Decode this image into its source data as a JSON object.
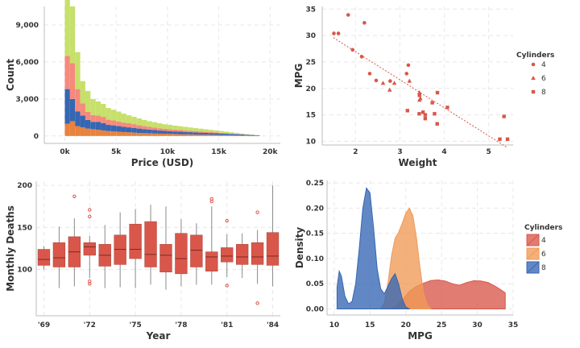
{
  "chart_data": [
    {
      "type": "histogram-stacked",
      "xlabel": "Price (USD)",
      "ylabel": "Count",
      "xlim": [
        -2000,
        21000
      ],
      "ylim": [
        -600,
        10500
      ],
      "x_ticks": [
        {
          "v": 0,
          "label": "0k"
        },
        {
          "v": 5000,
          "label": "5k"
        },
        {
          "v": 10000,
          "label": "10k"
        },
        {
          "v": 15000,
          "label": "15k"
        },
        {
          "v": 20000,
          "label": "20k"
        }
      ],
      "y_ticks": [
        {
          "v": 0,
          "label": "0"
        },
        {
          "v": 3000,
          "label": "3,000"
        },
        {
          "v": 6000,
          "label": "6,000"
        },
        {
          "v": 9000,
          "label": "9,000"
        }
      ],
      "bin_edges": [
        0,
        500,
        1000,
        1500,
        2000,
        2500,
        3000,
        3500,
        4000,
        4500,
        5000,
        5500,
        6000,
        6500,
        7000,
        7500,
        8000,
        8500,
        9000,
        9500,
        10000,
        10500,
        11000,
        11500,
        12000,
        12500,
        13000,
        13500,
        14000,
        14500,
        15000,
        15500,
        16000,
        16500,
        17000,
        17500,
        18000,
        18500,
        19000
      ],
      "series": [
        {
          "name": "orange",
          "color": "#e8823c",
          "values": [
            1000,
            1200,
            800,
            700,
            600,
            550,
            500,
            450,
            400,
            380,
            350,
            320,
            300,
            280,
            250,
            230,
            220,
            200,
            190,
            180,
            170,
            160,
            150,
            140,
            130,
            120,
            110,
            100,
            95,
            90,
            80,
            70,
            60,
            50,
            40,
            30,
            20,
            10
          ]
        },
        {
          "name": "blue",
          "color": "#3566b3",
          "values": [
            2800,
            1800,
            1200,
            950,
            700,
            600,
            650,
            600,
            500,
            480,
            450,
            420,
            400,
            380,
            350,
            320,
            300,
            280,
            250,
            230,
            220,
            210,
            200,
            190,
            180,
            170,
            160,
            150,
            140,
            130,
            120,
            110,
            100,
            90,
            80,
            70,
            60,
            50
          ]
        },
        {
          "name": "pink",
          "color": "#f58a7c",
          "values": [
            2700,
            2900,
            1800,
            1000,
            650,
            550,
            500,
            500,
            420,
            400,
            380,
            350,
            330,
            300,
            280,
            250,
            230,
            210,
            190,
            170,
            160,
            150,
            140,
            130,
            120,
            110,
            100,
            90,
            80,
            70,
            60,
            50,
            40,
            30,
            20,
            10,
            5,
            0
          ]
        },
        {
          "name": "green",
          "color": "#c7e06b",
          "values": [
            4800,
            4600,
            3000,
            1800,
            1700,
            1300,
            1150,
            1050,
            950,
            870,
            800,
            720,
            650,
            600,
            550,
            500,
            450,
            430,
            400,
            370,
            350,
            320,
            300,
            280,
            260,
            240,
            220,
            200,
            180,
            160,
            140,
            120,
            100,
            80,
            60,
            40,
            20,
            0
          ]
        }
      ]
    },
    {
      "type": "scatter",
      "xlabel": "Weight",
      "ylabel": "MPG",
      "xlim": [
        1.25,
        5.55
      ],
      "ylim": [
        9.3,
        35.5
      ],
      "x_ticks": [
        {
          "v": 2,
          "label": "2"
        },
        {
          "v": 3,
          "label": "3"
        },
        {
          "v": 4,
          "label": "4"
        },
        {
          "v": 5,
          "label": "5"
        }
      ],
      "y_ticks": [
        {
          "v": 10,
          "label": "10"
        },
        {
          "v": 15,
          "label": "15"
        },
        {
          "v": 20,
          "label": "20"
        },
        {
          "v": 25,
          "label": "25"
        },
        {
          "v": 30,
          "label": "30"
        },
        {
          "v": 35,
          "label": "35"
        }
      ],
      "color": "#d9574a",
      "legend_title": "Cylinders",
      "legend": [
        {
          "label": "4",
          "marker": "circle"
        },
        {
          "label": "6",
          "marker": "triangle"
        },
        {
          "label": "8",
          "marker": "square"
        }
      ],
      "trend": {
        "x": [
          1.5,
          5.42
        ],
        "y": [
          29.6,
          8.8
        ]
      },
      "points": [
        {
          "x": 2.62,
          "y": 21.0,
          "cyl": 6
        },
        {
          "x": 2.875,
          "y": 21.0,
          "cyl": 6
        },
        {
          "x": 2.32,
          "y": 22.8,
          "cyl": 4
        },
        {
          "x": 3.215,
          "y": 21.4,
          "cyl": 6
        },
        {
          "x": 3.44,
          "y": 18.7,
          "cyl": 8
        },
        {
          "x": 3.46,
          "y": 18.1,
          "cyl": 6
        },
        {
          "x": 3.57,
          "y": 14.3,
          "cyl": 8
        },
        {
          "x": 3.19,
          "y": 24.4,
          "cyl": 4
        },
        {
          "x": 3.15,
          "y": 22.8,
          "cyl": 4
        },
        {
          "x": 3.44,
          "y": 19.2,
          "cyl": 6
        },
        {
          "x": 3.44,
          "y": 17.8,
          "cyl": 6
        },
        {
          "x": 4.07,
          "y": 16.4,
          "cyl": 8
        },
        {
          "x": 3.73,
          "y": 17.3,
          "cyl": 8
        },
        {
          "x": 3.78,
          "y": 15.2,
          "cyl": 8
        },
        {
          "x": 5.25,
          "y": 10.4,
          "cyl": 8
        },
        {
          "x": 5.424,
          "y": 10.4,
          "cyl": 8
        },
        {
          "x": 5.345,
          "y": 14.7,
          "cyl": 8
        },
        {
          "x": 2.2,
          "y": 32.4,
          "cyl": 4
        },
        {
          "x": 1.615,
          "y": 30.4,
          "cyl": 4
        },
        {
          "x": 1.835,
          "y": 33.9,
          "cyl": 4
        },
        {
          "x": 2.465,
          "y": 21.5,
          "cyl": 4
        },
        {
          "x": 3.52,
          "y": 15.5,
          "cyl": 8
        },
        {
          "x": 3.435,
          "y": 15.2,
          "cyl": 8
        },
        {
          "x": 3.84,
          "y": 13.3,
          "cyl": 8
        },
        {
          "x": 3.845,
          "y": 19.2,
          "cyl": 8
        },
        {
          "x": 1.935,
          "y": 27.3,
          "cyl": 4
        },
        {
          "x": 2.14,
          "y": 26.0,
          "cyl": 4
        },
        {
          "x": 1.513,
          "y": 30.4,
          "cyl": 4
        },
        {
          "x": 3.17,
          "y": 15.8,
          "cyl": 8
        },
        {
          "x": 2.77,
          "y": 19.7,
          "cyl": 6
        },
        {
          "x": 3.57,
          "y": 15.0,
          "cyl": 8
        },
        {
          "x": 2.78,
          "y": 21.4,
          "cyl": 4
        }
      ]
    },
    {
      "type": "box",
      "xlabel": "Year",
      "ylabel": "Monthly Deaths",
      "ylim": [
        45,
        205
      ],
      "color": "#d9574a",
      "y_ticks": [
        {
          "v": 100,
          "label": "100"
        },
        {
          "v": 150,
          "label": "150"
        },
        {
          "v": 200,
          "label": "200"
        }
      ],
      "x_tick_labels": [
        "'69",
        "'72",
        "'75",
        "'78",
        "'81",
        "'84"
      ],
      "x_tick_at_box": [
        0,
        3,
        6,
        9,
        12,
        15
      ],
      "boxes": [
        {
          "whislo": 100,
          "q1": 105,
          "med": 112,
          "q3": 124,
          "whishi": 128,
          "fliers": []
        },
        {
          "whislo": 78,
          "q1": 103,
          "med": 114,
          "q3": 132,
          "whishi": 151,
          "fliers": []
        },
        {
          "whislo": 80,
          "q1": 103,
          "med": 121,
          "q3": 139,
          "whishi": 161,
          "fliers": [
            187
          ]
        },
        {
          "whislo": 90,
          "q1": 117,
          "med": 127,
          "q3": 132,
          "whishi": 140,
          "fliers": [
            83,
            86,
            163,
            171
          ]
        },
        {
          "whislo": 78,
          "q1": 104,
          "med": 117,
          "q3": 130,
          "whishi": 153,
          "fliers": []
        },
        {
          "whislo": 79,
          "q1": 106,
          "med": 124,
          "q3": 141,
          "whishi": 168,
          "fliers": []
        },
        {
          "whislo": 78,
          "q1": 113,
          "med": 124,
          "q3": 154,
          "whishi": 172,
          "fliers": []
        },
        {
          "whislo": 82,
          "q1": 103,
          "med": 118,
          "q3": 157,
          "whishi": 177,
          "fliers": []
        },
        {
          "whislo": 76,
          "q1": 97,
          "med": 117,
          "q3": 130,
          "whishi": 175,
          "fliers": []
        },
        {
          "whislo": 80,
          "q1": 95,
          "med": 113,
          "q3": 143,
          "whishi": 160,
          "fliers": []
        },
        {
          "whislo": 82,
          "q1": 103,
          "med": 123,
          "q3": 141,
          "whishi": 155,
          "fliers": []
        },
        {
          "whislo": 82,
          "q1": 98,
          "med": 115,
          "q3": 121,
          "whishi": 175,
          "fliers": [
            181,
            184
          ]
        },
        {
          "whislo": 91,
          "q1": 109,
          "med": 116,
          "q3": 126,
          "whishi": 142,
          "fliers": [
            81,
            158
          ]
        },
        {
          "whislo": 90,
          "q1": 106,
          "med": 115,
          "q3": 130,
          "whishi": 143,
          "fliers": []
        },
        {
          "whislo": 83,
          "q1": 106,
          "med": 115,
          "q3": 132,
          "whishi": 147,
          "fliers": [
            60,
            168
          ]
        },
        {
          "whislo": 80,
          "q1": 105,
          "med": 116,
          "q3": 144,
          "whishi": 200,
          "fliers": []
        }
      ]
    },
    {
      "type": "area-density",
      "xlabel": "MPG",
      "ylabel": "Density",
      "xlim": [
        9,
        35
      ],
      "ylim": [
        -0.012,
        0.255
      ],
      "x_ticks": [
        {
          "v": 10,
          "label": "10"
        },
        {
          "v": 15,
          "label": "15"
        },
        {
          "v": 20,
          "label": "20"
        },
        {
          "v": 25,
          "label": "25"
        },
        {
          "v": 30,
          "label": "30"
        },
        {
          "v": 35,
          "label": "35"
        }
      ],
      "y_ticks": [
        {
          "v": 0,
          "label": "0.00"
        },
        {
          "v": 0.05,
          "label": "0.05"
        },
        {
          "v": 0.1,
          "label": "0.10"
        },
        {
          "v": 0.15,
          "label": "0.15"
        },
        {
          "v": 0.2,
          "label": "0.20"
        },
        {
          "v": 0.25,
          "label": "0.25"
        }
      ],
      "legend_title": "Cylinders",
      "series": [
        {
          "name": "4",
          "color": "#d9574a",
          "x": [
            17.8,
            18.5,
            19.5,
            20.5,
            21.5,
            22.5,
            23.5,
            24.5,
            25.5,
            26.5,
            27.5,
            28.5,
            29.5,
            30.5,
            31.5,
            32.5,
            33.5,
            33.9
          ],
          "y": [
            0,
            0.004,
            0.018,
            0.035,
            0.045,
            0.051,
            0.0565,
            0.0575,
            0.0555,
            0.05,
            0.047,
            0.0525,
            0.056,
            0.0555,
            0.0525,
            0.045,
            0.036,
            0.032
          ]
        },
        {
          "name": "6",
          "color": "#f09a56",
          "x": [
            16.5,
            17.0,
            17.5,
            18.0,
            18.5,
            19.0,
            19.5,
            20.0,
            20.5,
            21.0,
            21.5,
            22.0,
            22.5,
            23.0,
            23.5
          ],
          "y": [
            0,
            0.012,
            0.05,
            0.105,
            0.14,
            0.152,
            0.17,
            0.19,
            0.2,
            0.185,
            0.14,
            0.08,
            0.03,
            0.008,
            0
          ]
        },
        {
          "name": "8",
          "color": "#3566b3",
          "x": [
            10.4,
            10.7,
            11.0,
            11.5,
            12.0,
            12.5,
            13.0,
            13.5,
            14.0,
            14.5,
            15.0,
            15.5,
            16.0,
            16.5,
            17.0,
            17.5,
            18.0,
            18.5,
            19.0,
            19.5,
            20.0,
            20.5
          ],
          "y": [
            0.043,
            0.075,
            0.065,
            0.025,
            0.01,
            0.015,
            0.05,
            0.12,
            0.2,
            0.24,
            0.23,
            0.16,
            0.08,
            0.04,
            0.03,
            0.045,
            0.06,
            0.07,
            0.05,
            0.02,
            0.004,
            0
          ]
        }
      ]
    }
  ]
}
